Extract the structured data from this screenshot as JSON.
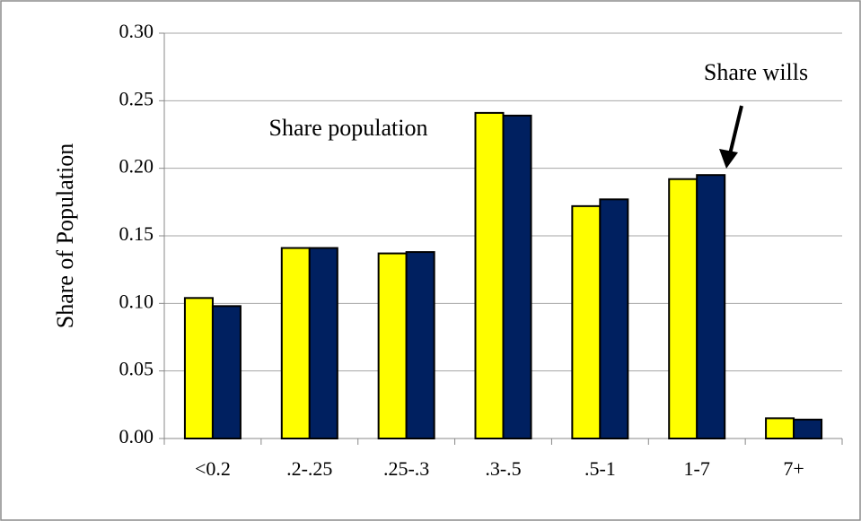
{
  "chart_data": {
    "type": "bar",
    "y_label": "Share of Population",
    "categories": [
      "<0.2",
      ".2-.25",
      ".25-.3",
      ".3-.5",
      ".5-1",
      "1-7",
      "7+"
    ],
    "series": [
      {
        "name": "Share population",
        "color": "#ffff00",
        "values": [
          0.104,
          0.141,
          0.137,
          0.241,
          0.172,
          0.192,
          0.015
        ]
      },
      {
        "name": "Share wills",
        "color": "#002060",
        "values": [
          0.098,
          0.141,
          0.138,
          0.239,
          0.177,
          0.195,
          0.014
        ]
      }
    ],
    "ylim": [
      0,
      0.3
    ],
    "yticks": [
      {
        "value": 0,
        "label": "0.00"
      },
      {
        "value": 0.05,
        "label": "0.05"
      },
      {
        "value": 0.1,
        "label": "0.10"
      },
      {
        "value": 0.15,
        "label": "0.15"
      },
      {
        "value": 0.2,
        "label": "0.20"
      },
      {
        "value": 0.25,
        "label": "0.25"
      },
      {
        "value": 0.3,
        "label": "0.30"
      }
    ],
    "grid": true
  }
}
